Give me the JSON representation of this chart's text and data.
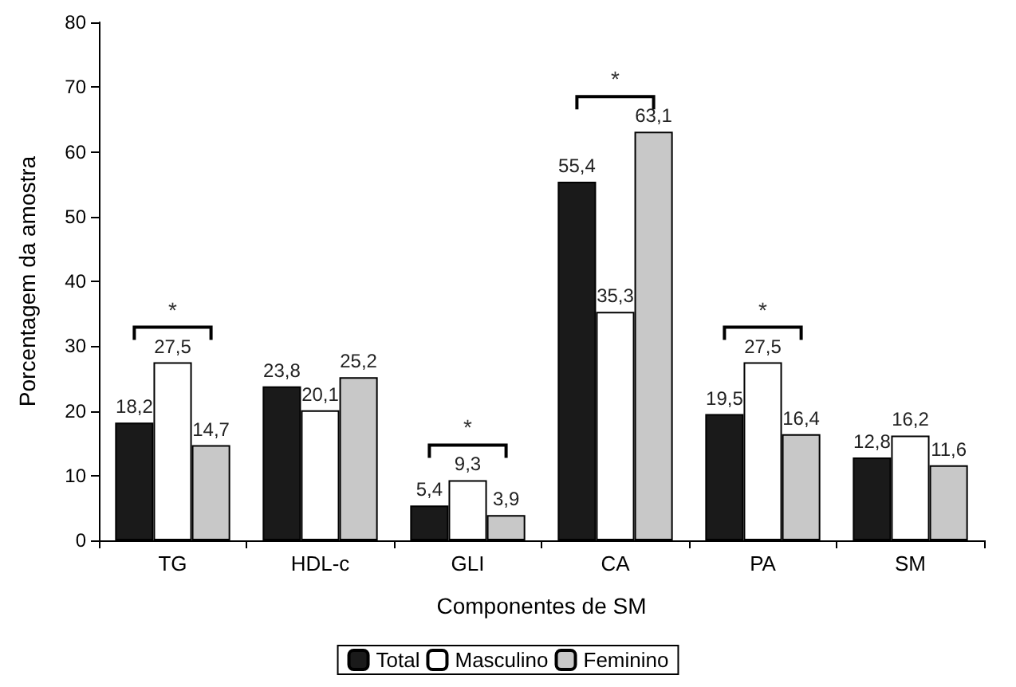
{
  "chart_data": {
    "type": "bar",
    "xlabel": "Componentes de SM",
    "ylabel": "Porcentagem da amostra",
    "categories": [
      "TG",
      "HDL-c",
      "GLI",
      "CA",
      "PA",
      "SM"
    ],
    "series": [
      {
        "name": "Total",
        "color": "#1a1a1a",
        "values": [
          18.2,
          23.8,
          5.4,
          55.4,
          19.5,
          12.8
        ],
        "value_labels": [
          "18,2",
          "23,8",
          "5,4",
          "55,4",
          "19,5",
          "12,8"
        ]
      },
      {
        "name": "Masculino",
        "color": "#ffffff",
        "values": [
          27.5,
          20.1,
          9.3,
          35.3,
          27.5,
          16.2
        ],
        "value_labels": [
          "27,5",
          "20,1",
          "9,3",
          "35,3",
          "27,5",
          "16,2"
        ]
      },
      {
        "name": "Feminino",
        "color": "#c8c8c8",
        "values": [
          14.7,
          25.2,
          3.9,
          63.1,
          16.4,
          11.6
        ],
        "value_labels": [
          "14,7",
          "25,2",
          "3,9",
          "63,1",
          "16,4",
          "11,6"
        ]
      }
    ],
    "ylim": [
      0,
      80
    ],
    "yticks": [
      0,
      10,
      20,
      30,
      40,
      50,
      60,
      70,
      80
    ],
    "grid": false,
    "legend": "bottom",
    "annotations": [
      "*",
      "*",
      "*",
      "*"
    ]
  }
}
